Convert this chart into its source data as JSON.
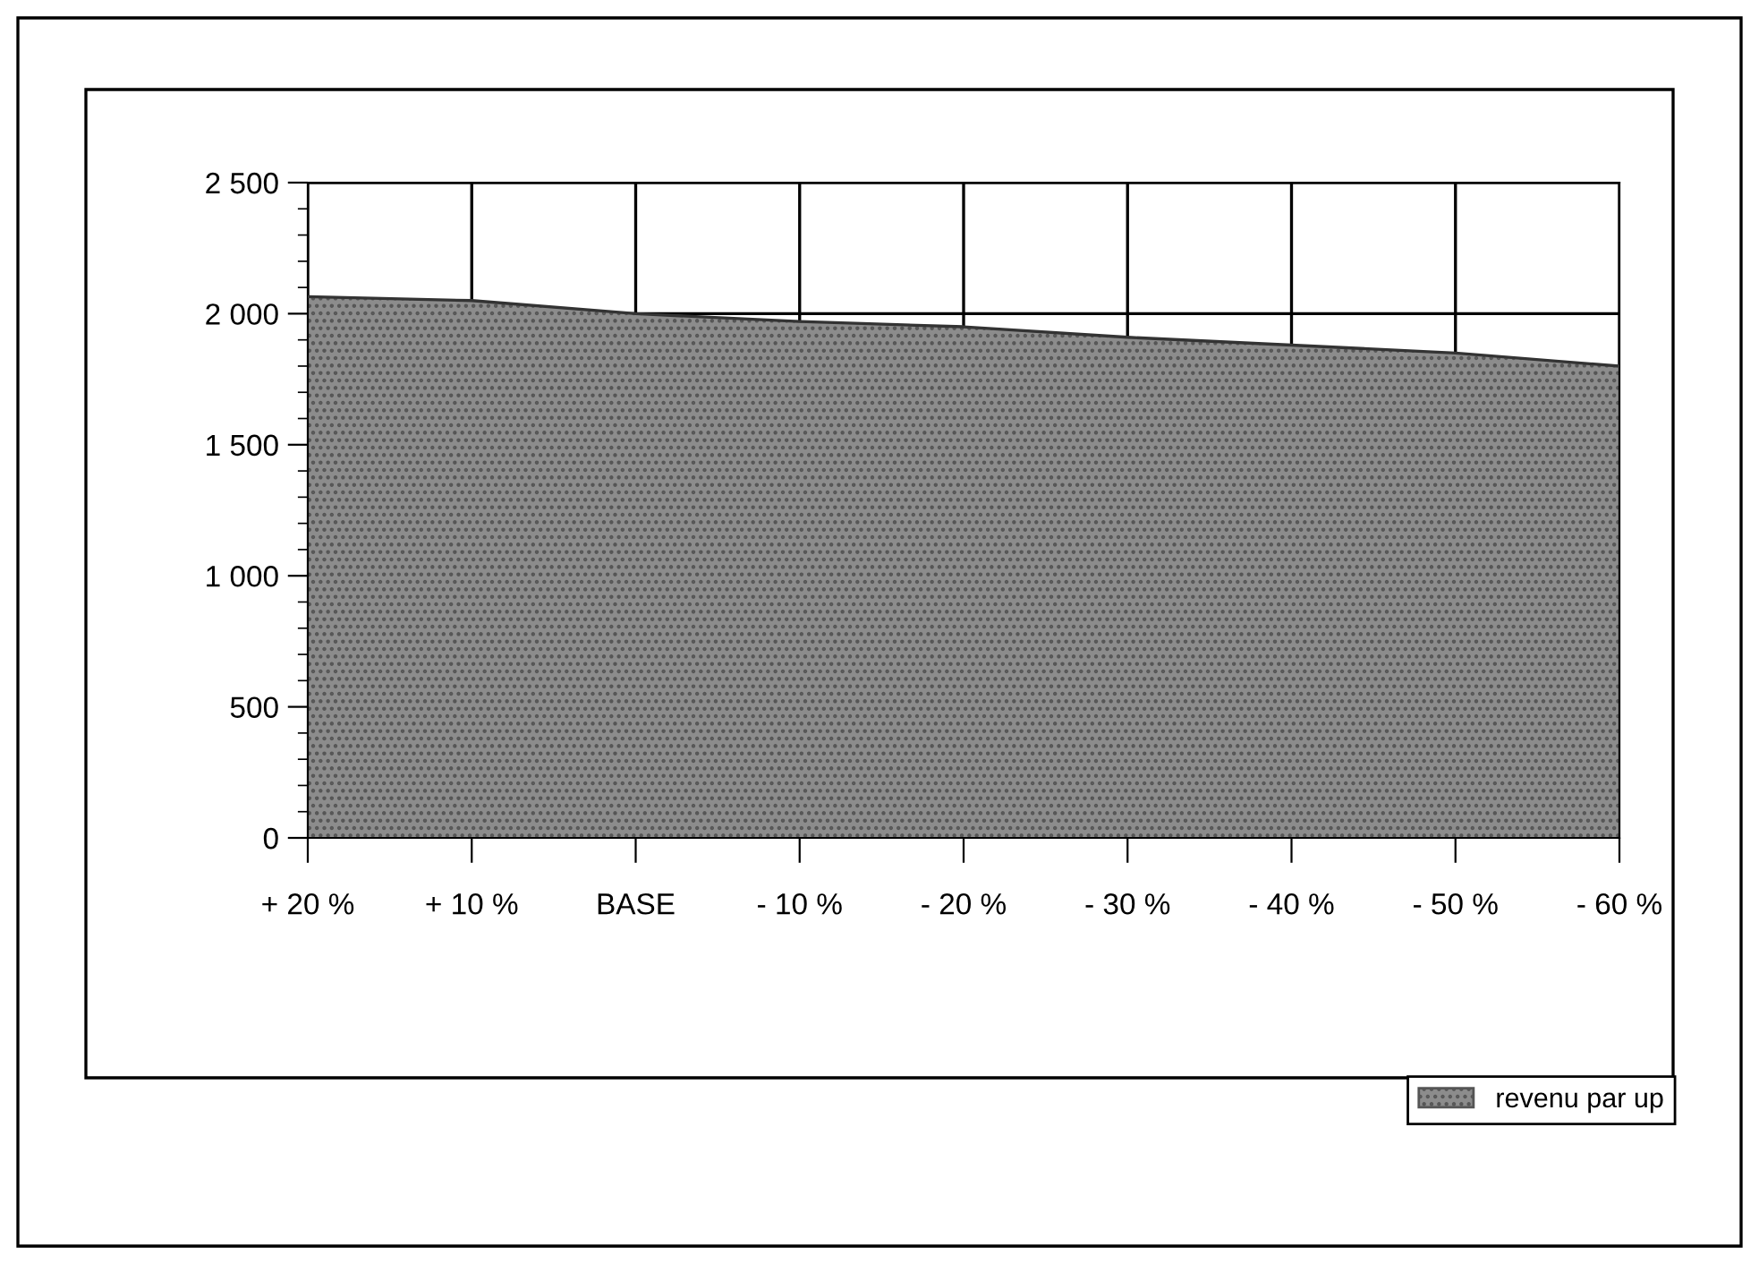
{
  "chart_data": {
    "type": "area",
    "categories": [
      "+ 20 %",
      "+ 10 %",
      "BASE",
      "- 10 %",
      "- 20 %",
      "- 30 %",
      "- 40 %",
      "- 50 %",
      "- 60 %"
    ],
    "series": [
      {
        "name": "revenu par up",
        "color": "#8c8c8c",
        "values": [
          2065,
          2050,
          2000,
          1970,
          1950,
          1910,
          1880,
          1850,
          1800
        ]
      }
    ],
    "ylim": [
      0,
      2500
    ],
    "yticks": [
      {
        "value": 0,
        "label": "0"
      },
      {
        "value": 500,
        "label": "500"
      },
      {
        "value": 1000,
        "label": "1 000"
      },
      {
        "value": 1500,
        "label": "1 500"
      },
      {
        "value": 2000,
        "label": "2 000"
      },
      {
        "value": 2500,
        "label": "2 500"
      }
    ],
    "grid": true,
    "legend": "bottom right"
  }
}
